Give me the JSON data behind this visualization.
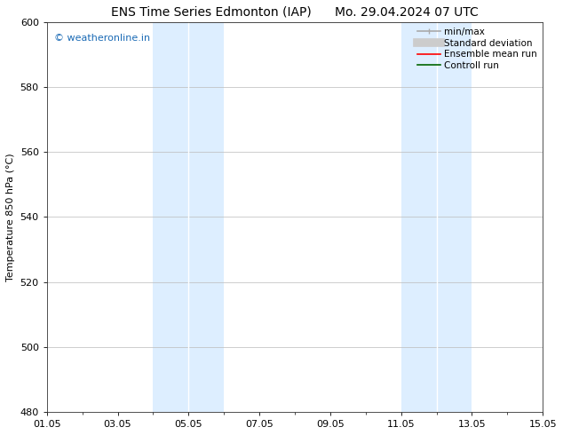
{
  "title_left": "ENS Time Series Edmonton (IAP)",
  "title_right": "Mo. 29.04.2024 07 UTC",
  "ylabel": "Temperature 850 hPa (°C)",
  "ylim": [
    480,
    600
  ],
  "yticks": [
    480,
    500,
    520,
    540,
    560,
    580,
    600
  ],
  "xtick_labels": [
    "01.05",
    "03.05",
    "05.05",
    "07.05",
    "09.05",
    "11.05",
    "13.05",
    "15.05"
  ],
  "xtick_positions": [
    0,
    2,
    4,
    6,
    8,
    10,
    12,
    14
  ],
  "xlim": [
    0,
    14
  ],
  "shade_bands": [
    {
      "x_start": 3.0,
      "x_end": 4.0,
      "color": "#ddeeff"
    },
    {
      "x_start": 4.0,
      "x_end": 5.0,
      "color": "#ddeeff"
    },
    {
      "x_start": 10.0,
      "x_end": 11.0,
      "color": "#ddeeff"
    },
    {
      "x_start": 11.0,
      "x_end": 12.0,
      "color": "#ddeeff"
    }
  ],
  "shade_band_separator": true,
  "watermark_text": "© weatheronline.in",
  "watermark_color": "#1a6ab5",
  "legend_entries": [
    {
      "label": "min/max",
      "color": "#aaaaaa",
      "lw": 1.2
    },
    {
      "label": "Standard deviation",
      "color": "#cccccc",
      "lw": 6
    },
    {
      "label": "Ensemble mean run",
      "color": "red",
      "lw": 1.2
    },
    {
      "label": "Controll run",
      "color": "green",
      "lw": 1.2
    }
  ],
  "bg_color": "#ffffff",
  "plot_bg_color": "#ffffff",
  "grid_color": "#bbbbbb",
  "title_fontsize": 10,
  "axis_label_fontsize": 8,
  "tick_fontsize": 8,
  "legend_fontsize": 7.5
}
